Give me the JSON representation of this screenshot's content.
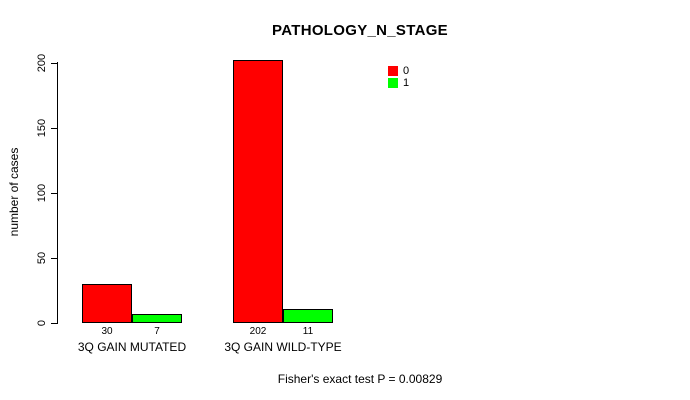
{
  "chart_data": {
    "type": "bar",
    "title": "PATHOLOGY_N_STAGE",
    "xlabel": "",
    "ylabel": "number of cases",
    "ylim": [
      0,
      200
    ],
    "yticks": [
      0,
      50,
      100,
      150,
      200
    ],
    "categories": [
      "3Q GAIN MUTATED",
      "3Q GAIN WILD-TYPE"
    ],
    "series": [
      {
        "name": "0",
        "color": "#ff0000",
        "values": [
          30,
          202
        ]
      },
      {
        "name": "1",
        "color": "#00ff00",
        "values": [
          7,
          11
        ]
      }
    ],
    "legend_position": "top-right",
    "grid": false,
    "bar_value_labels": [
      [
        "30",
        "202"
      ],
      [
        "7",
        "11"
      ]
    ],
    "annotation": "Fisher's exact test P = 0.00829"
  },
  "colors": {
    "background": "#ffffff",
    "axis": "#000000",
    "text": "#000000",
    "series0": "#ff0000",
    "series1": "#00ff00"
  }
}
